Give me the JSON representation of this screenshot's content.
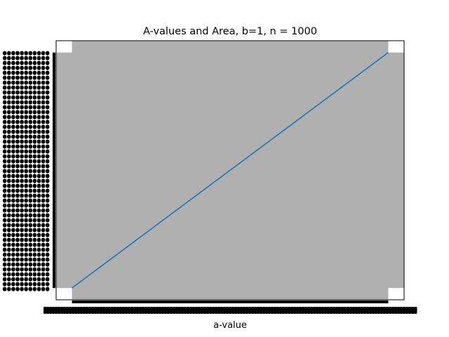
{
  "chart_data": {
    "type": "line",
    "title": "A-values and Area, b=1, n = 1000",
    "xlabel": "a-value",
    "ylabel": "",
    "xlim": [
      -0.05,
      1.05
    ],
    "ylim": [
      -0.05,
      1.05
    ],
    "grid": false,
    "legend": "none",
    "series": [
      {
        "x": [
          0,
          1
        ],
        "y": [
          0,
          1
        ],
        "color": "#1f77b4"
      }
    ],
    "colors": {
      "fill": "#b0b0b0",
      "line": "#1f77b4",
      "background": "#ffffff"
    }
  }
}
